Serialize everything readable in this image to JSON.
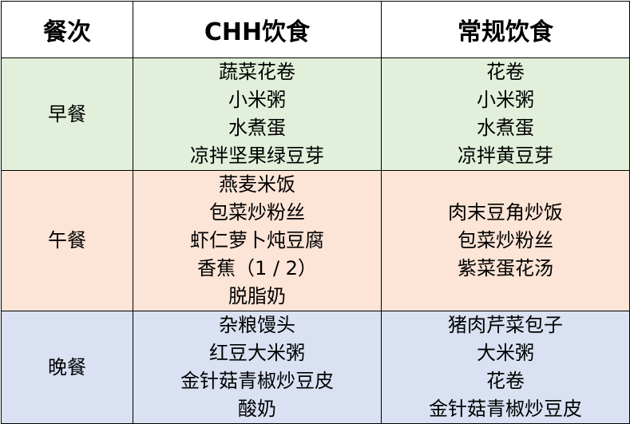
{
  "header": {
    "meal": "餐次",
    "chh": "CHH饮食",
    "regular": "常规饮食"
  },
  "colors": {
    "breakfast": "#E2EFDA",
    "lunch": "#FCE4D6",
    "dinner": "#D9E1F2"
  },
  "rows": [
    {
      "meal": "早餐",
      "chh": [
        "蔬菜花卷",
        "小米粥",
        "水煮蛋",
        "凉拌坚果绿豆芽"
      ],
      "regular": [
        "花卷",
        "小米粥",
        "水煮蛋",
        "凉拌黄豆芽"
      ]
    },
    {
      "meal": "午餐",
      "chh": [
        "燕麦米饭",
        "包菜炒粉丝",
        "虾仁萝卜炖豆腐",
        "香蕉（1 / 2）",
        "脱脂奶"
      ],
      "regular": [
        "肉末豆角炒饭",
        "包菜炒粉丝",
        "紫菜蛋花汤"
      ]
    },
    {
      "meal": "晚餐",
      "chh": [
        "杂粮馒头",
        "红豆大米粥",
        "金针菇青椒炒豆皮",
        "酸奶"
      ],
      "regular": [
        "猪肉芹菜包子",
        "大米粥",
        "花卷",
        "金针菇青椒炒豆皮"
      ]
    }
  ]
}
